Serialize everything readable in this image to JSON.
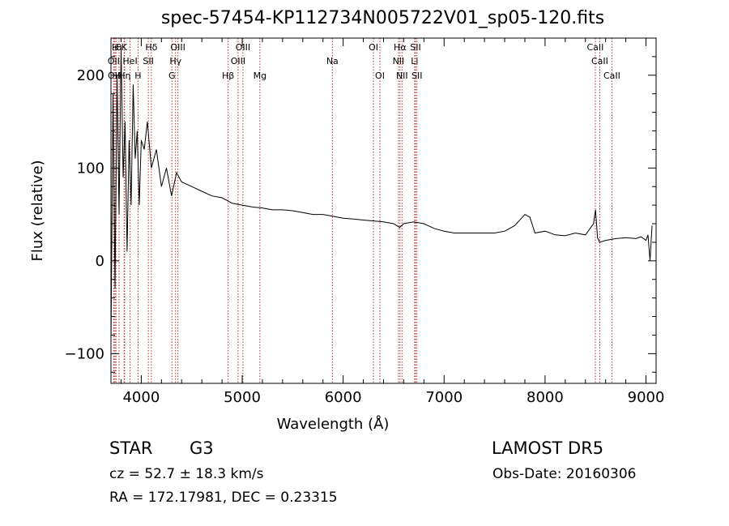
{
  "chart_data": {
    "type": "line",
    "title": "spec-57454-KP112734N005722V01_sp05-120.fits",
    "xlabel": "Wavelength (Å)",
    "ylabel": "Flux (relative)",
    "xlim": [
      3700,
      9100
    ],
    "ylim": [
      -132,
      240
    ],
    "xticks": [
      4000,
      5000,
      6000,
      7000,
      8000,
      9000
    ],
    "yticks": [
      -100,
      0,
      100,
      200
    ],
    "grid": false,
    "series": [
      {
        "x": [
          3700,
          3720,
          3740,
          3760,
          3780,
          3800,
          3820,
          3840,
          3860,
          3880,
          3900,
          3920,
          3940,
          3960,
          3980,
          4000,
          4030,
          4060,
          4100,
          4150,
          4200,
          4250,
          4300,
          4350,
          4400,
          4500,
          4600,
          4700,
          4800,
          4900,
          5000,
          5100,
          5200,
          5300,
          5400,
          5500,
          5600,
          5700,
          5800,
          5900,
          6000,
          6100,
          6200,
          6300,
          6400,
          6500,
          6560,
          6600,
          6700,
          6800,
          6900,
          7000,
          7100,
          7200,
          7300,
          7400,
          7500,
          7600,
          7700,
          7800,
          7850,
          7900,
          8000,
          8100,
          8200,
          8300,
          8400,
          8480,
          8500,
          8520,
          8540,
          8600,
          8700,
          8800,
          8900,
          8950,
          9000,
          9020,
          9040,
          9060
        ],
        "y": [
          -90,
          180,
          -30,
          200,
          50,
          230,
          90,
          150,
          10,
          130,
          60,
          190,
          110,
          140,
          60,
          130,
          120,
          150,
          100,
          120,
          80,
          100,
          70,
          95,
          85,
          80,
          75,
          70,
          68,
          62,
          60,
          58,
          57,
          55,
          55,
          54,
          52,
          50,
          50,
          48,
          46,
          45,
          44,
          43,
          42,
          40,
          36,
          40,
          42,
          40,
          35,
          32,
          30,
          30,
          30,
          30,
          30,
          32,
          38,
          50,
          47,
          30,
          32,
          28,
          27,
          30,
          28,
          40,
          55,
          25,
          20,
          22,
          24,
          25,
          24,
          26,
          22,
          28,
          0,
          38
        ]
      }
    ],
    "lines": {
      "top1": [
        {
          "label": "H",
          "x": 3740
        },
        {
          "label": "ι",
          "x": 3750
        },
        {
          "label": "θ",
          "x": 3780
        },
        {
          "label": "K",
          "x": 3830
        },
        {
          "label": "Hδ",
          "x": 4100
        },
        {
          "label": "OIII",
          "x": 4363
        },
        {
          "label": "OIII",
          "x": 5007
        },
        {
          "label": "OI",
          "x": 6300
        },
        {
          "label": "Hα",
          "x": 6563
        },
        {
          "label": "SII",
          "x": 6717
        },
        {
          "label": "CaII",
          "x": 8498
        }
      ],
      "top2": [
        {
          "label": "OII",
          "x": 3727
        },
        {
          "label": "HeI",
          "x": 3889
        },
        {
          "label": "SII",
          "x": 4070
        },
        {
          "label": "Hγ",
          "x": 4340
        },
        {
          "label": "OIII",
          "x": 4959
        },
        {
          "label": "Na",
          "x": 5893
        },
        {
          "label": "NII",
          "x": 6548
        },
        {
          "label": "Li",
          "x": 6708
        },
        {
          "label": "CaII",
          "x": 8542
        }
      ],
      "top3": [
        {
          "label": "OII",
          "x": 3729
        },
        {
          "label": "Hη",
          "x": 3835
        },
        {
          "label": "H",
          "x": 3968
        },
        {
          "label": "G",
          "x": 4304
        },
        {
          "label": "Hβ",
          "x": 4861
        },
        {
          "label": "Mg",
          "x": 5175
        },
        {
          "label": "OI",
          "x": 6364
        },
        {
          "label": "NII",
          "x": 6583
        },
        {
          "label": "SII",
          "x": 6731
        },
        {
          "label": "CaII",
          "x": 8662
        }
      ],
      "line_color": "#b03030"
    }
  },
  "info": {
    "object_class": "STAR",
    "subclass": "G3",
    "survey": "LAMOST DR5",
    "redshift": "cz = 52.7 ± 18.3 km/s",
    "obs_date": "Obs-Date: 20160306",
    "coords": "RA = 172.17981, DEC =   0.23315"
  }
}
